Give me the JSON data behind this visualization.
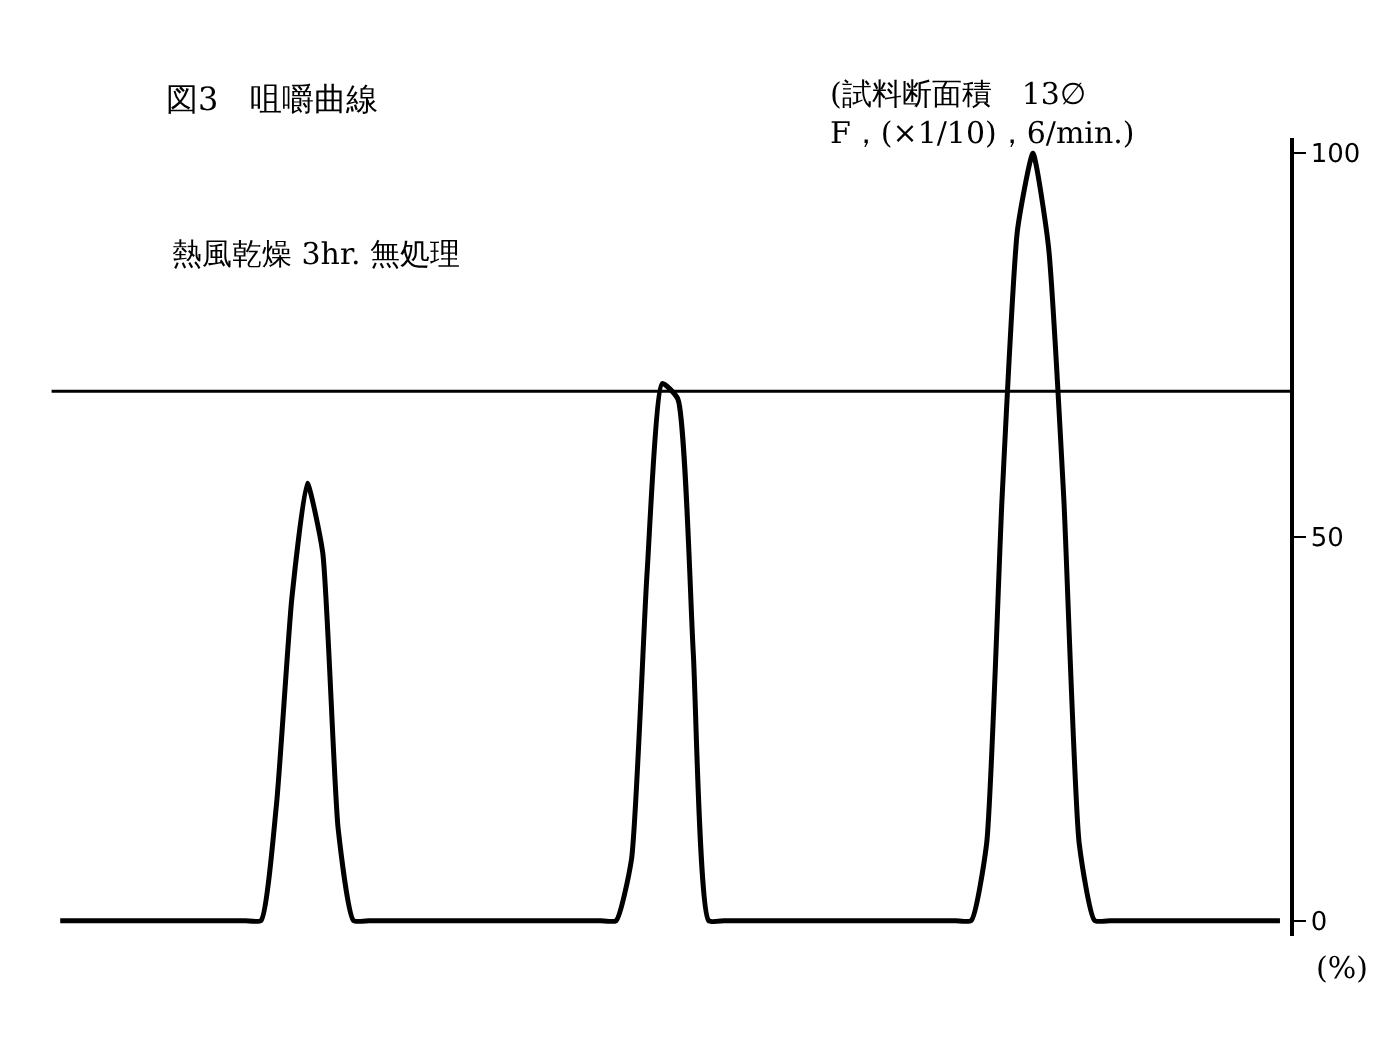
{
  "chart_data": {
    "type": "line",
    "title": "図3　咀嚼曲線",
    "ylabel": "(%)",
    "annotations": [
      "熱風乾燥 3hr. 無処理",
      "(試料断面積　13∅\nF，(×1/10)，6/min.)"
    ],
    "categories": [
      null,
      null,
      null,
      null,
      null,
      null,
      null,
      null,
      null,
      null,
      null,
      null,
      null,
      null,
      null,
      null,
      null,
      null,
      null,
      null,
      null,
      null,
      null,
      null,
      null,
      null,
      null,
      null,
      null,
      null,
      null,
      null,
      null,
      null,
      null,
      null,
      null,
      null,
      null,
      null,
      null,
      null,
      null,
      null,
      null,
      null,
      null,
      null,
      null,
      null,
      null,
      null,
      null,
      null,
      null,
      null,
      null,
      null,
      null,
      null,
      null,
      null,
      null,
      null,
      null,
      null,
      null,
      null,
      null,
      null,
      null,
      null,
      null,
      null,
      null,
      null,
      null,
      null,
      null,
      null
    ],
    "series": [
      {
        "color": "#000000",
        "values": [
          0,
          0,
          0,
          0,
          0,
          0,
          0,
          0,
          0,
          0,
          0,
          0,
          0,
          0,
          15,
          42,
          57,
          48,
          12,
          0,
          0,
          0,
          0,
          0,
          0,
          0,
          0,
          0,
          0,
          0,
          0,
          0,
          0,
          0,
          0,
          0,
          0,
          8,
          45,
          70,
          68,
          35,
          0,
          0,
          0,
          0,
          0,
          0,
          0,
          0,
          0,
          0,
          0,
          0,
          0,
          0,
          0,
          0,
          0,
          0,
          10,
          55,
          90,
          100,
          88,
          55,
          10,
          0,
          0,
          0,
          0,
          0,
          0,
          0,
          0,
          0,
          0,
          0,
          0,
          0
        ]
      }
    ],
    "ylim": [
      -2,
      102
    ],
    "yticks": [
      0,
      50,
      100
    ],
    "tick_labels": "y",
    "grid": false,
    "marker": "none",
    "line_style": "solid",
    "ref_lines": [
      {
        "axis": "y",
        "value": 69,
        "color": "#000000"
      }
    ]
  }
}
